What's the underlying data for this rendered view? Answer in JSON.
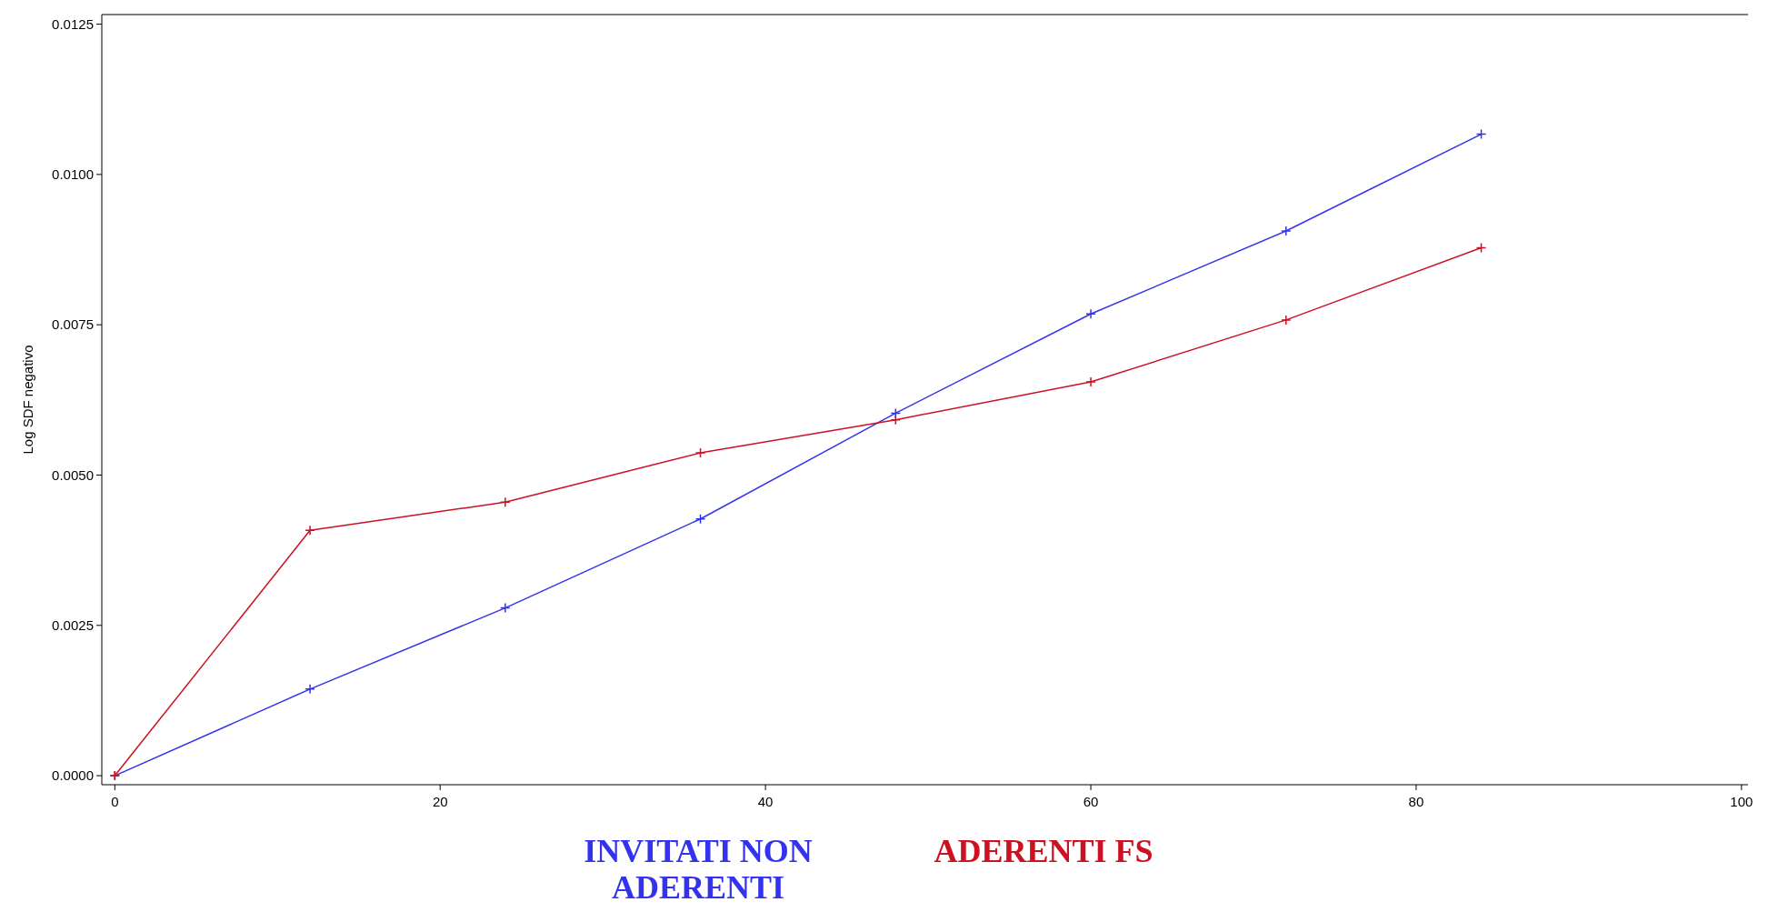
{
  "chart_data": {
    "type": "line",
    "ylabel": "Log SDF negativo",
    "x": [
      0,
      12,
      24,
      36,
      48,
      60,
      72,
      84
    ],
    "series": [
      {
        "name": "INVITATI NON ADERENTI",
        "color": "#3333ee",
        "values": [
          0,
          0.00144,
          0.00279,
          0.00427,
          0.00603,
          0.00768,
          0.00906,
          0.01067
        ]
      },
      {
        "name": "ADERENTI FS",
        "color": "#cc1122",
        "values": [
          0,
          0.00408,
          0.00455,
          0.00537,
          0.00592,
          0.00655,
          0.00758,
          0.00878
        ]
      }
    ],
    "xlim": [
      -0.8,
      100.4
    ],
    "xticks": [
      0,
      20,
      40,
      60,
      80,
      100
    ],
    "ylim": [
      -0.00015,
      0.01266
    ],
    "yticks": [
      {
        "value": 0,
        "label": "0.0000"
      },
      {
        "value": 0.0025,
        "label": "0.0025"
      },
      {
        "value": 0.005,
        "label": "0.0050"
      },
      {
        "value": 0.0075,
        "label": "0.0075"
      },
      {
        "value": 0.01,
        "label": "0.0100"
      },
      {
        "value": 0.0125,
        "label": "0.0125"
      }
    ],
    "marker": "cross",
    "line_style": "solid",
    "legend": "bottom",
    "grid": false
  }
}
